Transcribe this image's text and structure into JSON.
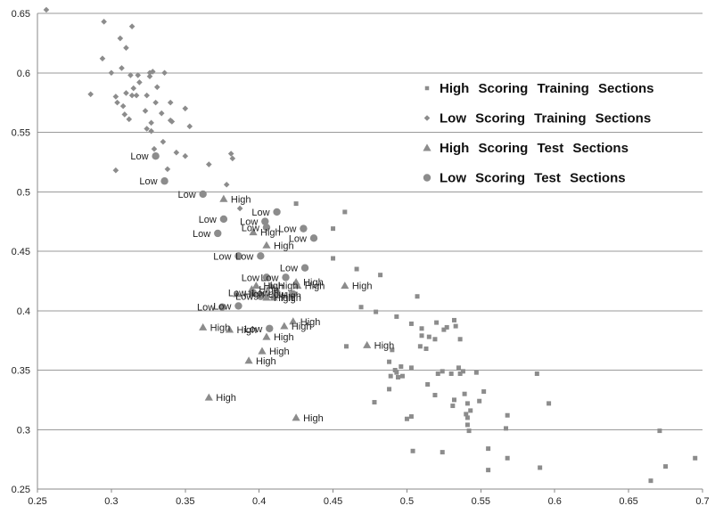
{
  "chart_data": {
    "type": "scatter",
    "xlim": [
      0.25,
      0.7
    ],
    "ylim": [
      0.25,
      0.65
    ],
    "x_ticks": [
      "0.25",
      "0.3",
      "0.35",
      "0.4",
      "0.45",
      "0.5",
      "0.55",
      "0.6",
      "0.65",
      "0.7"
    ],
    "y_ticks": [
      "0.25",
      "0.3",
      "0.35",
      "0.4",
      "0.45",
      "0.5",
      "0.55",
      "0.6",
      "0.65"
    ],
    "grid": "horizontal",
    "legend_position": "right",
    "series": [
      {
        "name": "High Scoring Training Sections",
        "marker": "square",
        "color": "#8c8c8c",
        "points": [
          [
            0.425,
            0.49
          ],
          [
            0.458,
            0.483
          ],
          [
            0.45,
            0.469
          ],
          [
            0.45,
            0.444
          ],
          [
            0.466,
            0.435
          ],
          [
            0.482,
            0.43
          ],
          [
            0.469,
            0.403
          ],
          [
            0.479,
            0.399
          ],
          [
            0.507,
            0.412
          ],
          [
            0.493,
            0.395
          ],
          [
            0.503,
            0.389
          ],
          [
            0.51,
            0.385
          ],
          [
            0.51,
            0.379
          ],
          [
            0.515,
            0.378
          ],
          [
            0.52,
            0.39
          ],
          [
            0.527,
            0.386
          ],
          [
            0.532,
            0.392
          ],
          [
            0.533,
            0.387
          ],
          [
            0.525,
            0.384
          ],
          [
            0.536,
            0.376
          ],
          [
            0.519,
            0.376
          ],
          [
            0.513,
            0.368
          ],
          [
            0.509,
            0.37
          ],
          [
            0.459,
            0.37
          ],
          [
            0.49,
            0.367
          ],
          [
            0.488,
            0.357
          ],
          [
            0.493,
            0.348
          ],
          [
            0.496,
            0.353
          ],
          [
            0.497,
            0.345
          ],
          [
            0.494,
            0.344
          ],
          [
            0.492,
            0.35
          ],
          [
            0.489,
            0.345
          ],
          [
            0.503,
            0.352
          ],
          [
            0.514,
            0.338
          ],
          [
            0.521,
            0.347
          ],
          [
            0.524,
            0.349
          ],
          [
            0.53,
            0.347
          ],
          [
            0.535,
            0.352
          ],
          [
            0.536,
            0.347
          ],
          [
            0.538,
            0.349
          ],
          [
            0.547,
            0.348
          ],
          [
            0.552,
            0.332
          ],
          [
            0.539,
            0.33
          ],
          [
            0.541,
            0.322
          ],
          [
            0.549,
            0.324
          ],
          [
            0.532,
            0.325
          ],
          [
            0.531,
            0.32
          ],
          [
            0.519,
            0.329
          ],
          [
            0.488,
            0.334
          ],
          [
            0.478,
            0.323
          ],
          [
            0.503,
            0.311
          ],
          [
            0.5,
            0.309
          ],
          [
            0.54,
            0.313
          ],
          [
            0.543,
            0.316
          ],
          [
            0.541,
            0.31
          ],
          [
            0.541,
            0.304
          ],
          [
            0.542,
            0.299
          ],
          [
            0.567,
            0.301
          ],
          [
            0.568,
            0.312
          ],
          [
            0.588,
            0.347
          ],
          [
            0.596,
            0.322
          ],
          [
            0.504,
            0.282
          ],
          [
            0.524,
            0.281
          ],
          [
            0.555,
            0.284
          ],
          [
            0.555,
            0.266
          ],
          [
            0.568,
            0.276
          ],
          [
            0.59,
            0.268
          ],
          [
            0.665,
            0.257
          ],
          [
            0.671,
            0.299
          ],
          [
            0.675,
            0.269
          ],
          [
            0.695,
            0.276
          ]
        ]
      },
      {
        "name": "Low Scoring Training Sections",
        "marker": "diamond",
        "color": "#8c8c8c",
        "points": [
          [
            0.256,
            0.653
          ],
          [
            0.295,
            0.643
          ],
          [
            0.314,
            0.639
          ],
          [
            0.306,
            0.629
          ],
          [
            0.31,
            0.621
          ],
          [
            0.294,
            0.612
          ],
          [
            0.307,
            0.604
          ],
          [
            0.3,
            0.6
          ],
          [
            0.313,
            0.598
          ],
          [
            0.318,
            0.598
          ],
          [
            0.326,
            0.6
          ],
          [
            0.328,
            0.601
          ],
          [
            0.336,
            0.6
          ],
          [
            0.326,
            0.597
          ],
          [
            0.319,
            0.592
          ],
          [
            0.315,
            0.587
          ],
          [
            0.331,
            0.588
          ],
          [
            0.303,
            0.58
          ],
          [
            0.314,
            0.581
          ],
          [
            0.317,
            0.581
          ],
          [
            0.31,
            0.583
          ],
          [
            0.286,
            0.582
          ],
          [
            0.304,
            0.575
          ],
          [
            0.324,
            0.581
          ],
          [
            0.33,
            0.575
          ],
          [
            0.308,
            0.572
          ],
          [
            0.34,
            0.575
          ],
          [
            0.323,
            0.568
          ],
          [
            0.35,
            0.57
          ],
          [
            0.334,
            0.566
          ],
          [
            0.309,
            0.565
          ],
          [
            0.312,
            0.561
          ],
          [
            0.327,
            0.558
          ],
          [
            0.341,
            0.559
          ],
          [
            0.34,
            0.56
          ],
          [
            0.353,
            0.555
          ],
          [
            0.324,
            0.553
          ],
          [
            0.327,
            0.551
          ],
          [
            0.335,
            0.542
          ],
          [
            0.329,
            0.536
          ],
          [
            0.35,
            0.53
          ],
          [
            0.344,
            0.533
          ],
          [
            0.366,
            0.523
          ],
          [
            0.338,
            0.519
          ],
          [
            0.303,
            0.518
          ],
          [
            0.381,
            0.532
          ],
          [
            0.382,
            0.528
          ],
          [
            0.378,
            0.506
          ],
          [
            0.387,
            0.486
          ]
        ]
      },
      {
        "name": "High Scoring Test Sections",
        "marker": "triangle",
        "color": "#8c8c8c",
        "points": [
          [
            0.376,
            0.494
          ],
          [
            0.396,
            0.466
          ],
          [
            0.405,
            0.455
          ],
          [
            0.408,
            0.421
          ],
          [
            0.398,
            0.421
          ],
          [
            0.395,
            0.418
          ],
          [
            0.385,
            0.414
          ],
          [
            0.41,
            0.413
          ],
          [
            0.405,
            0.411
          ],
          [
            0.41,
            0.411
          ],
          [
            0.425,
            0.424
          ],
          [
            0.426,
            0.421
          ],
          [
            0.458,
            0.421
          ],
          [
            0.362,
            0.386
          ],
          [
            0.38,
            0.384
          ],
          [
            0.417,
            0.387
          ],
          [
            0.423,
            0.391
          ],
          [
            0.405,
            0.378
          ],
          [
            0.402,
            0.366
          ],
          [
            0.473,
            0.371
          ],
          [
            0.393,
            0.358
          ],
          [
            0.366,
            0.327
          ],
          [
            0.425,
            0.31
          ]
        ],
        "labels": [
          "High",
          "High",
          "High",
          "High",
          "High",
          "High",
          "High",
          "High",
          "High",
          "High",
          "High",
          "High",
          "High",
          "High",
          "High",
          "High",
          "High",
          "High",
          "High",
          "High",
          "High",
          "High",
          "High"
        ]
      },
      {
        "name": "Low Scoring Test Sections",
        "marker": "circle",
        "color": "#8c8c8c",
        "points": [
          [
            0.33,
            0.53
          ],
          [
            0.336,
            0.509
          ],
          [
            0.362,
            0.498
          ],
          [
            0.412,
            0.483
          ],
          [
            0.404,
            0.475
          ],
          [
            0.405,
            0.47
          ],
          [
            0.43,
            0.469
          ],
          [
            0.376,
            0.477
          ],
          [
            0.437,
            0.461
          ],
          [
            0.372,
            0.465
          ],
          [
            0.386,
            0.446
          ],
          [
            0.401,
            0.446
          ],
          [
            0.431,
            0.436
          ],
          [
            0.418,
            0.428
          ],
          [
            0.405,
            0.428
          ],
          [
            0.396,
            0.415
          ],
          [
            0.412,
            0.415
          ],
          [
            0.423,
            0.414
          ],
          [
            0.401,
            0.412
          ],
          [
            0.386,
            0.404
          ],
          [
            0.375,
            0.403
          ],
          [
            0.407,
            0.385
          ]
        ],
        "labels": [
          "Low",
          "Low",
          "Low",
          "Low",
          "Low",
          "Low",
          "Low",
          "Low",
          "Low",
          "Low",
          "Low",
          "Low",
          "Low",
          "Low",
          "Low",
          "Low",
          "Low",
          "Low",
          "Low",
          "Low",
          "Low",
          "Low"
        ]
      }
    ]
  }
}
